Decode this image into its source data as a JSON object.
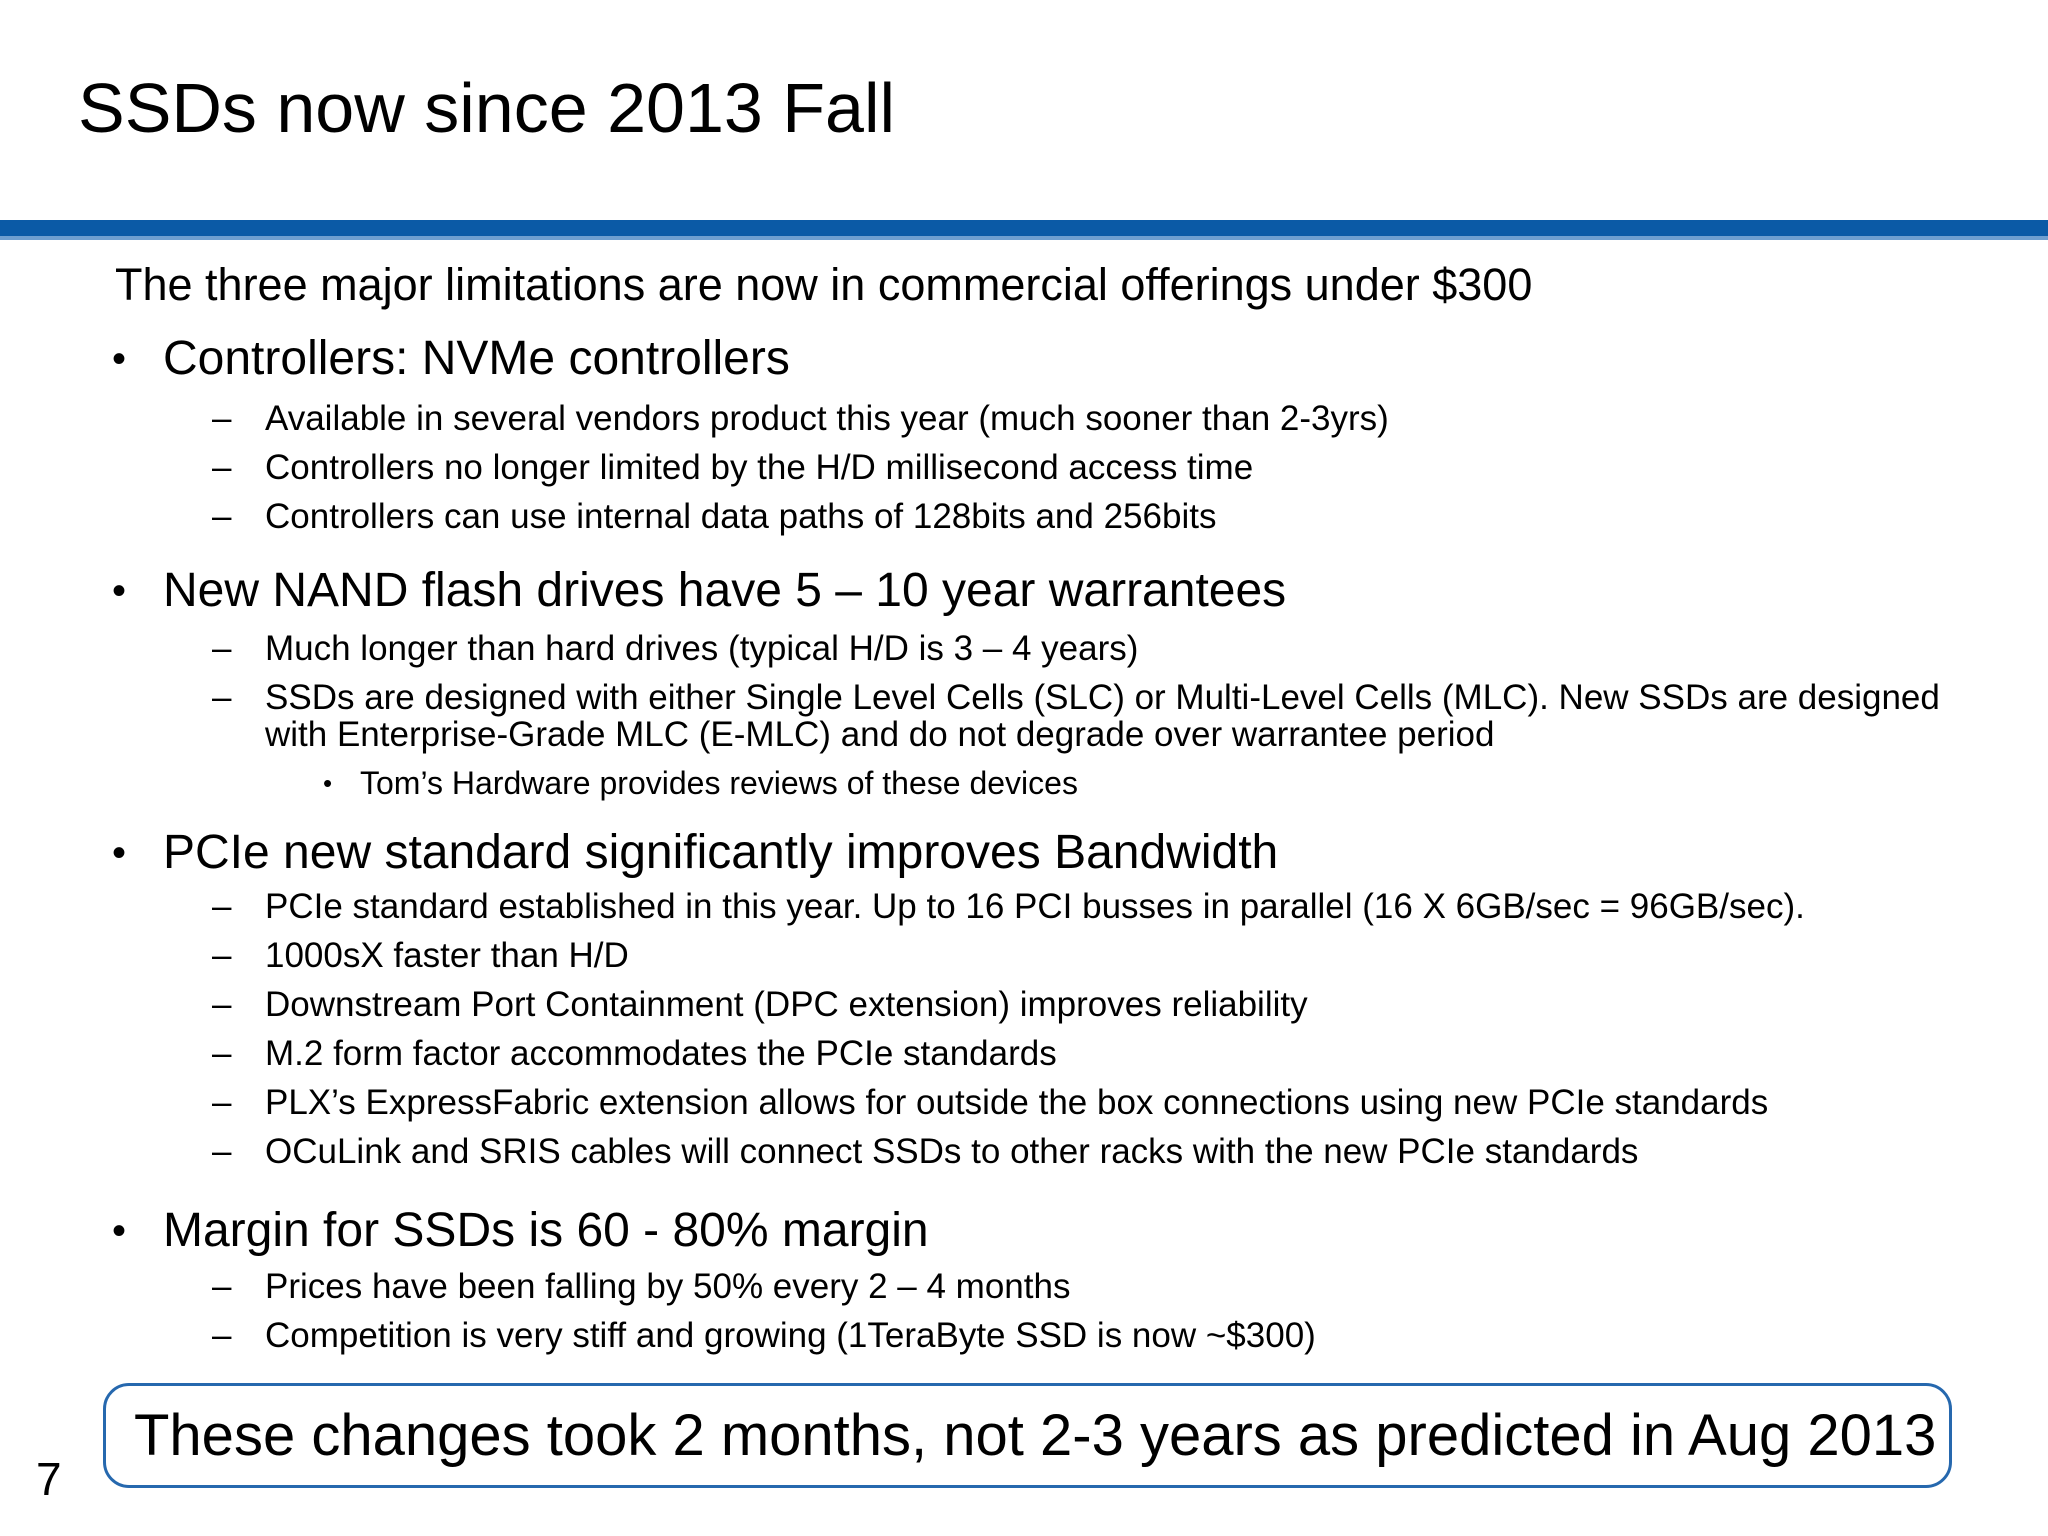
{
  "title": "SSDs now since 2013 Fall",
  "intro": "The three major limitations are now in commercial offerings under $300",
  "glyphs": {
    "bullet": "•",
    "dash": "–",
    "sub_bullet": "•"
  },
  "colors": {
    "divider_blue": "#0b5aa6",
    "divider_blue_light": "#6f9fd0",
    "callout_border": "#2668ae",
    "text": "#000000",
    "background": "#ffffff"
  },
  "sections": [
    {
      "heading": "Controllers: NVMe controllers",
      "items": [
        "Available in several vendors product this year (much sooner than 2-3yrs)",
        "Controllers no longer limited by the H/D millisecond access time",
        "Controllers can use internal data paths of 128bits and 256bits"
      ]
    },
    {
      "heading": "New NAND flash drives have 5 – 10 year warrantees",
      "items": [
        "Much longer than hard drives (typical H/D is 3 – 4 years)",
        "SSDs are designed with either Single Level Cells (SLC) or Multi-Level Cells (MLC).  New SSDs are designed\nwith Enterprise-Grade MLC (E-MLC) and do not degrade over warrantee period"
      ],
      "subitem": "Tom’s Hardware provides reviews of these devices"
    },
    {
      "heading": "PCIe new standard significantly improves Bandwidth",
      "items": [
        "PCIe standard established in this year. Up to 16 PCI busses in parallel (16 X 6GB/sec = 96GB/sec).",
        "1000sX faster than H/D",
        "Downstream Port Containment (DPC extension) improves reliability",
        "M.2 form factor accommodates the PCIe standards",
        "PLX’s ExpressFabric extension allows for outside the box connections using new PCIe standards",
        "OCuLink and SRIS cables will connect SSDs to other racks with the new PCIe standards"
      ]
    },
    {
      "heading": "Margin for SSDs is 60 - 80% margin",
      "items": [
        "Prices have been falling by 50% every 2 – 4 months",
        "Competition is very stiff and growing (1TeraByte SSD is now ~$300)"
      ]
    }
  ],
  "callout": "These changes took 2 months, not 2-3 years as predicted in Aug 2013",
  "page_number": "7"
}
